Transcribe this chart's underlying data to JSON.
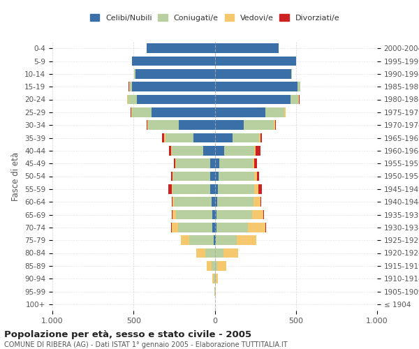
{
  "age_groups": [
    "100+",
    "95-99",
    "90-94",
    "85-89",
    "80-84",
    "75-79",
    "70-74",
    "65-69",
    "60-64",
    "55-59",
    "50-54",
    "45-49",
    "40-44",
    "35-39",
    "30-34",
    "25-29",
    "20-24",
    "15-19",
    "10-14",
    "5-9",
    "0-4"
  ],
  "birth_years": [
    "≤ 1904",
    "1905-1909",
    "1910-1914",
    "1915-1919",
    "1920-1924",
    "1925-1929",
    "1930-1934",
    "1935-1939",
    "1940-1944",
    "1945-1949",
    "1950-1954",
    "1955-1959",
    "1960-1964",
    "1965-1969",
    "1970-1974",
    "1975-1979",
    "1980-1984",
    "1985-1989",
    "1990-1994",
    "1995-1999",
    "2000-2004"
  ],
  "males": {
    "celibi": [
      0,
      0,
      0,
      0,
      0,
      5,
      15,
      15,
      20,
      30,
      30,
      30,
      70,
      130,
      220,
      390,
      480,
      510,
      490,
      510,
      420
    ],
    "coniugati": [
      0,
      2,
      5,
      20,
      60,
      150,
      210,
      225,
      230,
      230,
      225,
      210,
      195,
      175,
      190,
      120,
      55,
      15,
      5,
      0,
      0
    ],
    "vedovi": [
      0,
      2,
      10,
      30,
      55,
      55,
      40,
      20,
      10,
      5,
      5,
      3,
      3,
      5,
      3,
      5,
      3,
      3,
      0,
      0,
      0
    ],
    "divorziati": [
      0,
      0,
      0,
      0,
      0,
      0,
      5,
      5,
      5,
      20,
      10,
      10,
      15,
      15,
      5,
      5,
      3,
      3,
      0,
      0,
      0
    ]
  },
  "females": {
    "nubili": [
      0,
      0,
      0,
      0,
      0,
      5,
      10,
      10,
      15,
      20,
      25,
      30,
      60,
      110,
      180,
      310,
      465,
      510,
      470,
      500,
      395
    ],
    "coniugate": [
      0,
      2,
      5,
      15,
      55,
      130,
      195,
      220,
      225,
      225,
      220,
      205,
      185,
      165,
      185,
      120,
      50,
      15,
      5,
      0,
      0
    ],
    "vedove": [
      0,
      3,
      15,
      55,
      90,
      120,
      105,
      70,
      40,
      25,
      15,
      10,
      8,
      5,
      5,
      5,
      5,
      3,
      0,
      0,
      0
    ],
    "divorziate": [
      0,
      0,
      0,
      0,
      0,
      0,
      5,
      5,
      5,
      20,
      15,
      15,
      30,
      10,
      5,
      3,
      3,
      0,
      0,
      0,
      0
    ]
  },
  "colors": {
    "celibi": "#3a6fa8",
    "coniugati": "#b8cfa0",
    "vedovi": "#f5c86e",
    "divorziati": "#cc2222"
  },
  "xlim": 1000,
  "title": "Popolazione per età, sesso e stato civile - 2005",
  "subtitle": "COMUNE DI RIBERA (AG) - Dati ISTAT 1° gennaio 2005 - Elaborazione TUTTITALIA.IT",
  "ylabel_left": "Fasce di età",
  "legend_labels": [
    "Celibi/Nubili",
    "Coniugati/e",
    "Vedovi/e",
    "Divorziati/e"
  ],
  "background_color": "#ffffff",
  "grid_color": "#cccccc"
}
